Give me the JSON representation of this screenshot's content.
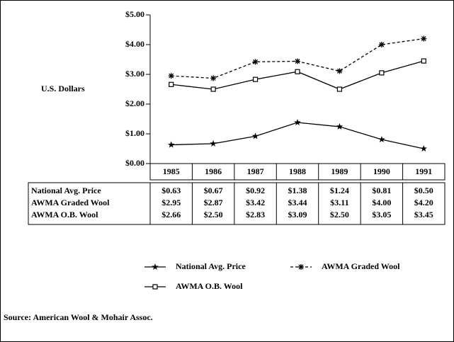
{
  "chart_data": {
    "type": "line",
    "ylabel": "U.S. Dollars",
    "categories": [
      "1985",
      "1986",
      "1987",
      "1988",
      "1989",
      "1990",
      "1991"
    ],
    "ylim": [
      0,
      5
    ],
    "yticks": [
      {
        "value": 0,
        "label": "$0.00"
      },
      {
        "value": 1,
        "label": "$1.00"
      },
      {
        "value": 2,
        "label": "$2.00"
      },
      {
        "value": 3,
        "label": "$3.00"
      },
      {
        "value": 4,
        "label": "$4.00"
      },
      {
        "value": 5,
        "label": "$5.00"
      }
    ],
    "grid": false,
    "series": [
      {
        "name": "National Avg. Price",
        "color": "#000000",
        "line_style": "solid",
        "marker": "star",
        "values": [
          0.63,
          0.67,
          0.92,
          1.38,
          1.24,
          0.81,
          0.5
        ],
        "value_labels": [
          "$0.63",
          "$0.67",
          "$0.92",
          "$1.38",
          "$1.24",
          "$0.81",
          "$0.50"
        ]
      },
      {
        "name": "AWMA Graded Wool",
        "color": "#000000",
        "line_style": "dashed",
        "marker": "asterisk",
        "values": [
          2.95,
          2.87,
          3.42,
          3.44,
          3.11,
          4.0,
          4.2
        ],
        "value_labels": [
          "$2.95",
          "$2.87",
          "$3.42",
          "$3.44",
          "$3.11",
          "$4.00",
          "$4.20"
        ]
      },
      {
        "name": "AWMA O.B. Wool",
        "color": "#000000",
        "line_style": "solid",
        "marker": "square",
        "values": [
          2.66,
          2.5,
          2.83,
          3.09,
          2.5,
          3.05,
          3.45
        ],
        "value_labels": [
          "$2.66",
          "$2.50",
          "$2.83",
          "$3.09",
          "$2.50",
          "$3.05",
          "$3.45"
        ]
      }
    ],
    "source": "Source: American Wool & Mohair Assoc."
  }
}
